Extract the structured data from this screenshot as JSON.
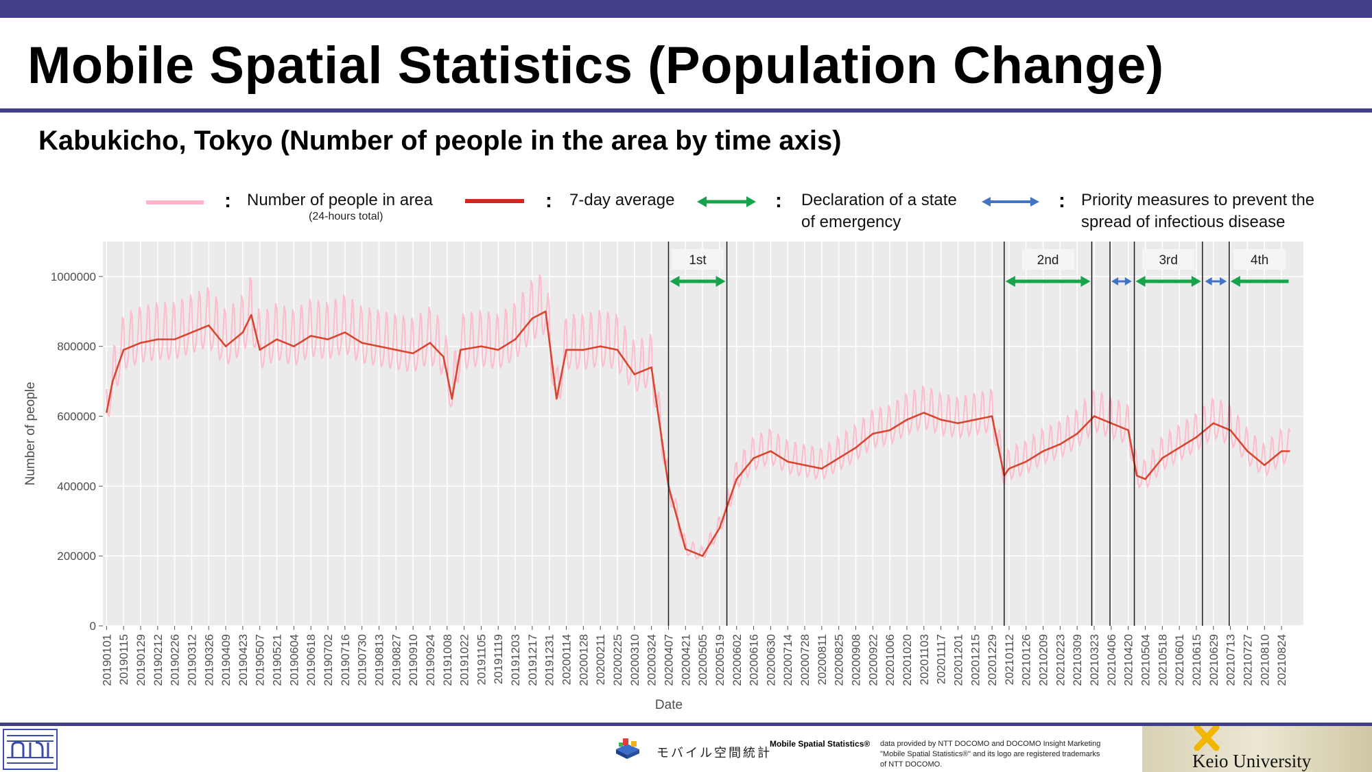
{
  "header": {
    "title": "Mobile Spatial Statistics (Population Change)",
    "subtitle": "Kabukicho, Tokyo (Number of people in the area by time axis)"
  },
  "legend": {
    "colon": ":",
    "daily_label": "Number of people in area",
    "daily_sublabel": "(24-hours total)",
    "avg_label": "7-day average",
    "emergency_label_line1": "Declaration of a state",
    "emergency_label_line2": "of emergency",
    "priority_label_line1": "Priority measures to prevent the",
    "priority_label_line2": "spread of infectious disease"
  },
  "colors": {
    "header_bar": "#423f88",
    "daily": "#ffb6c8",
    "average": "#d9442e",
    "emergency_arrow": "#17a34a",
    "priority_arrow": "#4472c4",
    "plot_background": "#ebebeb"
  },
  "chart_data": {
    "type": "line",
    "xlabel": "Date",
    "ylabel": "Number of people",
    "ylim": [
      0,
      1100000
    ],
    "y_ticks": [
      "0",
      "200000",
      "400000",
      "600000",
      "800000",
      "1000000"
    ],
    "x_tick_labels": [
      "20190101",
      "20190115",
      "20190129",
      "20190212",
      "20190226",
      "20190312",
      "20190326",
      "20190409",
      "20190423",
      "20190507",
      "20190521",
      "20190604",
      "20190618",
      "20190702",
      "20190716",
      "20190730",
      "20190813",
      "20190827",
      "20190910",
      "20190924",
      "20191008",
      "20191022",
      "20191105",
      "20191119",
      "20191203",
      "20191217",
      "20191231",
      "20200114",
      "20200128",
      "20200211",
      "20200225",
      "20200310",
      "20200324",
      "20200407",
      "20200421",
      "20200505",
      "20200519",
      "20200602",
      "20200616",
      "20200630",
      "20200714",
      "20200728",
      "20200811",
      "20200825",
      "20200908",
      "20200922",
      "20201006",
      "20201020",
      "20201103",
      "20201117",
      "20201201",
      "20201215",
      "20201229",
      "20210112",
      "20210126",
      "20210209",
      "20210223",
      "20210309",
      "20210323",
      "20210406",
      "20210420",
      "20210504",
      "20210518",
      "20210601",
      "20210615",
      "20210629",
      "20210713",
      "20210727",
      "20210810",
      "20210824"
    ],
    "grid": true,
    "legend_position": "top",
    "average_series_keypoints": [
      {
        "x": "20190101",
        "y": 610000
      },
      {
        "x": "20190106",
        "y": 700000
      },
      {
        "x": "20190115",
        "y": 790000
      },
      {
        "x": "20190129",
        "y": 810000
      },
      {
        "x": "20190212",
        "y": 820000
      },
      {
        "x": "20190226",
        "y": 820000
      },
      {
        "x": "20190312",
        "y": 840000
      },
      {
        "x": "20190326",
        "y": 860000
      },
      {
        "x": "20190409",
        "y": 800000
      },
      {
        "x": "20190423",
        "y": 840000
      },
      {
        "x": "20190430",
        "y": 890000
      },
      {
        "x": "20190507",
        "y": 790000
      },
      {
        "x": "20190521",
        "y": 820000
      },
      {
        "x": "20190604",
        "y": 800000
      },
      {
        "x": "20190618",
        "y": 830000
      },
      {
        "x": "20190702",
        "y": 820000
      },
      {
        "x": "20190716",
        "y": 840000
      },
      {
        "x": "20190730",
        "y": 810000
      },
      {
        "x": "20190813",
        "y": 800000
      },
      {
        "x": "20190827",
        "y": 790000
      },
      {
        "x": "20190910",
        "y": 780000
      },
      {
        "x": "20190924",
        "y": 810000
      },
      {
        "x": "20191005",
        "y": 770000
      },
      {
        "x": "20191012",
        "y": 650000
      },
      {
        "x": "20191019",
        "y": 790000
      },
      {
        "x": "20191105",
        "y": 800000
      },
      {
        "x": "20191119",
        "y": 790000
      },
      {
        "x": "20191203",
        "y": 820000
      },
      {
        "x": "20191217",
        "y": 880000
      },
      {
        "x": "20191228",
        "y": 900000
      },
      {
        "x": "20200106",
        "y": 650000
      },
      {
        "x": "20200114",
        "y": 790000
      },
      {
        "x": "20200128",
        "y": 790000
      },
      {
        "x": "20200211",
        "y": 800000
      },
      {
        "x": "20200225",
        "y": 790000
      },
      {
        "x": "20200310",
        "y": 720000
      },
      {
        "x": "20200324",
        "y": 740000
      },
      {
        "x": "20200407",
        "y": 400000
      },
      {
        "x": "20200421",
        "y": 220000
      },
      {
        "x": "20200505",
        "y": 200000
      },
      {
        "x": "20200519",
        "y": 280000
      },
      {
        "x": "20200602",
        "y": 420000
      },
      {
        "x": "20200616",
        "y": 480000
      },
      {
        "x": "20200630",
        "y": 500000
      },
      {
        "x": "20200714",
        "y": 470000
      },
      {
        "x": "20200728",
        "y": 460000
      },
      {
        "x": "20200811",
        "y": 450000
      },
      {
        "x": "20200825",
        "y": 480000
      },
      {
        "x": "20200908",
        "y": 510000
      },
      {
        "x": "20200922",
        "y": 550000
      },
      {
        "x": "20201006",
        "y": 560000
      },
      {
        "x": "20201020",
        "y": 590000
      },
      {
        "x": "20201103",
        "y": 610000
      },
      {
        "x": "20201117",
        "y": 590000
      },
      {
        "x": "20201201",
        "y": 580000
      },
      {
        "x": "20201215",
        "y": 590000
      },
      {
        "x": "20201229",
        "y": 600000
      },
      {
        "x": "20210108",
        "y": 430000
      },
      {
        "x": "20210112",
        "y": 450000
      },
      {
        "x": "20210126",
        "y": 470000
      },
      {
        "x": "20210209",
        "y": 500000
      },
      {
        "x": "20210223",
        "y": 520000
      },
      {
        "x": "20210309",
        "y": 550000
      },
      {
        "x": "20210323",
        "y": 600000
      },
      {
        "x": "20210406",
        "y": 580000
      },
      {
        "x": "20210420",
        "y": 560000
      },
      {
        "x": "20210427",
        "y": 430000
      },
      {
        "x": "20210504",
        "y": 420000
      },
      {
        "x": "20210518",
        "y": 480000
      },
      {
        "x": "20210601",
        "y": 510000
      },
      {
        "x": "20210615",
        "y": 540000
      },
      {
        "x": "20210629",
        "y": 580000
      },
      {
        "x": "20210713",
        "y": 560000
      },
      {
        "x": "20210727",
        "y": 500000
      },
      {
        "x": "20210810",
        "y": 460000
      },
      {
        "x": "20210824",
        "y": 500000
      }
    ],
    "periods": [
      {
        "label": "1st",
        "type": "emergency",
        "start": "20200407",
        "end": "20200525"
      },
      {
        "label": "2nd",
        "type": "emergency",
        "start": "20210108",
        "end": "20210321"
      },
      {
        "label": "",
        "type": "priority",
        "start": "20210405",
        "end": "20210424"
      },
      {
        "label": "3rd",
        "type": "emergency",
        "start": "20210425",
        "end": "20210620"
      },
      {
        "label": "",
        "type": "priority",
        "start": "20210621",
        "end": "20210711"
      },
      {
        "label": "4th",
        "type": "emergency",
        "start": "20210712",
        "end": "20210831"
      }
    ],
    "period_lines": [
      "20200407",
      "20200525",
      "20210108",
      "20210321",
      "20210405",
      "20210425",
      "20210620",
      "20210712"
    ]
  },
  "footer": {
    "mss_japanese": "モバイル空間統計",
    "mss_title": "Mobile Spatial Statistics®",
    "credit_line1": "data provided by NTT DOCOMO and DOCOMO Insight Marketing",
    "credit_line2": "\"Mobile Spatial Statistics®\" and its logo are registered trademarks",
    "credit_line3": "of NTT DOCOMO.",
    "university": "Keio University"
  }
}
